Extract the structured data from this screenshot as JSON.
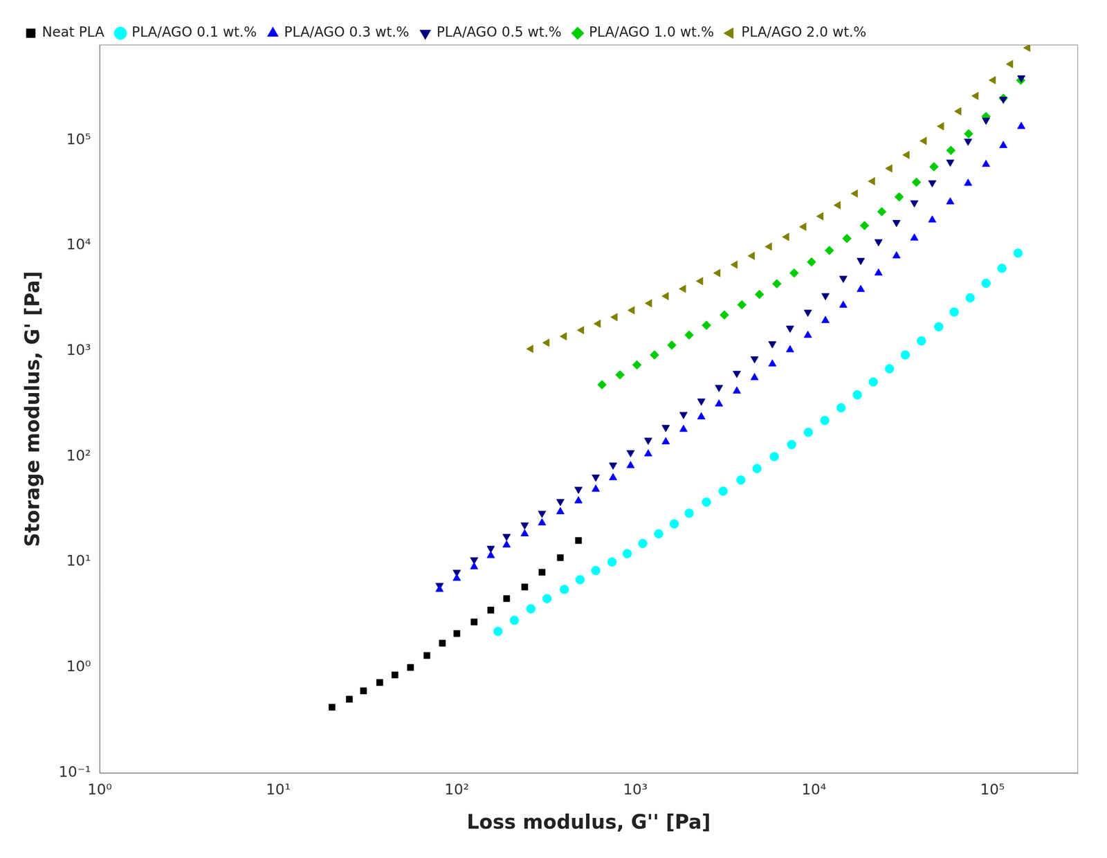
{
  "chart_data": {
    "type": "scatter",
    "x_label": "Loss modulus, G'' [Pa]",
    "y_label": "Storage modulus, G' [Pa]",
    "log": true,
    "grid": false,
    "legend": "upper left",
    "xlim": [
      1,
      300000
    ],
    "ylim": [
      0.1,
      800000
    ],
    "xticks": [
      {
        "value": 1,
        "label": "10⁰"
      },
      {
        "value": 10,
        "label": "10¹"
      },
      {
        "value": 100,
        "label": "10²"
      },
      {
        "value": 1000,
        "label": "10³"
      },
      {
        "value": 10000,
        "label": "10⁴"
      },
      {
        "value": 100000,
        "label": "10⁵"
      }
    ],
    "yticks": [
      {
        "value": 0.1,
        "label": "10⁻¹"
      },
      {
        "value": 1,
        "label": "10⁰"
      },
      {
        "value": 10,
        "label": "10¹"
      },
      {
        "value": 100,
        "label": "10²"
      },
      {
        "value": 1000,
        "label": "10³"
      },
      {
        "value": 10000,
        "label": "10⁴"
      },
      {
        "value": 100000,
        "label": "10⁵"
      }
    ],
    "series": [
      {
        "name": "Neat PLA",
        "color": "#000000",
        "marker": "square",
        "x": [
          20,
          25,
          30,
          37,
          45,
          55,
          68,
          83,
          100,
          125,
          155,
          190,
          240,
          300,
          380,
          480
        ],
        "values": [
          0.42,
          0.5,
          0.6,
          0.72,
          0.85,
          1.0,
          1.3,
          1.7,
          2.1,
          2.7,
          3.5,
          4.5,
          5.8,
          8.0,
          11.0,
          16.0
        ]
      },
      {
        "name": "PLA/AGO 0.1 wt.%",
        "color": "#00FFFF",
        "marker": "circle",
        "x": [
          170,
          210,
          260,
          320,
          400,
          490,
          600,
          740,
          900,
          1100,
          1350,
          1650,
          2000,
          2500,
          3100,
          3900,
          4800,
          6000,
          7500,
          9300,
          11500,
          14200,
          17500,
          21500,
          26500,
          32500,
          40000,
          50000,
          61000,
          75000,
          92000,
          113000,
          139000
        ],
        "values": [
          2.2,
          2.8,
          3.6,
          4.5,
          5.5,
          6.8,
          8.3,
          10.0,
          12.0,
          15.0,
          18.5,
          23.0,
          29.0,
          37.0,
          47.0,
          60.0,
          77.0,
          100.0,
          130.0,
          170.0,
          220.0,
          290.0,
          385.0,
          510.0,
          680.0,
          920.0,
          1250.0,
          1700.0,
          2350.0,
          3200.0,
          4400.0,
          6100.0,
          8500.0
        ]
      },
      {
        "name": "PLA/AGO 0.3 wt.%",
        "color": "#0000FF",
        "marker": "triangle-up",
        "x": [
          80,
          100,
          125,
          155,
          190,
          240,
          300,
          380,
          480,
          600,
          750,
          940,
          1180,
          1480,
          1860,
          2340,
          2940,
          3700,
          4650,
          5850,
          7350,
          9250,
          11600,
          14600,
          18300,
          23000,
          29000,
          36500,
          46000,
          58000,
          73000,
          92000,
          115000,
          145000
        ],
        "values": [
          5.5,
          7.0,
          9.0,
          11.5,
          14.5,
          18.5,
          23.5,
          30.0,
          38.0,
          49.0,
          63.0,
          82.0,
          106.0,
          138.0,
          181.0,
          238.0,
          315.0,
          418.0,
          560.0,
          755.0,
          1030.0,
          1410.0,
          1950.0,
          2720.0,
          3840.0,
          5500.0,
          8000.0,
          11800.0,
          17500.0,
          26000.0,
          39000.0,
          59000.0,
          89000.0,
          135000.0
        ]
      },
      {
        "name": "PLA/AGO 0.5 wt.%",
        "color": "#000080",
        "marker": "triangle-down",
        "x": [
          80,
          100,
          125,
          155,
          190,
          240,
          300,
          380,
          480,
          600,
          750,
          940,
          1180,
          1480,
          1860,
          2340,
          2940,
          3700,
          4650,
          5850,
          7350,
          9250,
          11600,
          14600,
          18300,
          23000,
          29000,
          36500,
          46000,
          58000,
          73000,
          92000,
          115000,
          145000
        ],
        "values": [
          6.0,
          8.0,
          10.5,
          13.5,
          17.5,
          22.5,
          29.0,
          37.5,
          49.0,
          64.0,
          83.0,
          109.0,
          143.0,
          189.0,
          251.0,
          336.0,
          453.0,
          616.0,
          846.0,
          1175.0,
          1650.0,
          2340.0,
          3360.0,
          4900.0,
          7250.0,
          10900.0,
          16600.0,
          25500.0,
          39500.0,
          62000.0,
          98000.0,
          155000.0,
          245000.0,
          390000.0
        ]
      },
      {
        "name": "PLA/AGO 1.0 wt.%",
        "color": "#00CC00",
        "marker": "diamond",
        "x": [
          650,
          820,
          1020,
          1280,
          1600,
          2000,
          2500,
          3150,
          3950,
          4950,
          6200,
          7750,
          9700,
          12200,
          15300,
          19200,
          24000,
          30000,
          37500,
          47000,
          58500,
          73500,
          92000,
          115000,
          144000
        ],
        "values": [
          480.0,
          595.0,
          740.0,
          920.0,
          1140.0,
          1420.0,
          1760.0,
          2200.0,
          2750.0,
          3450.0,
          4350.0,
          5500.0,
          7000.0,
          9000.0,
          11700.0,
          15500.0,
          21000.0,
          29000.0,
          40000.0,
          56000.0,
          80000.0,
          115000.0,
          168000.0,
          250000.0,
          370000.0
        ]
      },
      {
        "name": "PLA/AGO 2.0 wt.%",
        "color": "#808000",
        "marker": "triangle-left",
        "x": [
          260,
          320,
          400,
          500,
          620,
          770,
          960,
          1200,
          1490,
          1860,
          2320,
          2900,
          3620,
          4520,
          5640,
          7040,
          8780,
          10950,
          13680,
          17080,
          21320,
          26620,
          33230,
          41500,
          51850,
          64800,
          80950,
          101100,
          126300,
          157900
        ],
        "values": [
          1050.0,
          1200.0,
          1380.0,
          1580.0,
          1820.0,
          2100.0,
          2440.0,
          2840.0,
          3320.0,
          3900.0,
          4610.0,
          5500.0,
          6600.0,
          8000.0,
          9800.0,
          12100.0,
          15100.0,
          19000.0,
          24200.0,
          31200.0,
          40800.0,
          54000.0,
          72500.0,
          98500.0,
          135500.0,
          188000.0,
          263000.0,
          371000.0,
          527000.0,
          752000.0
        ]
      }
    ]
  }
}
